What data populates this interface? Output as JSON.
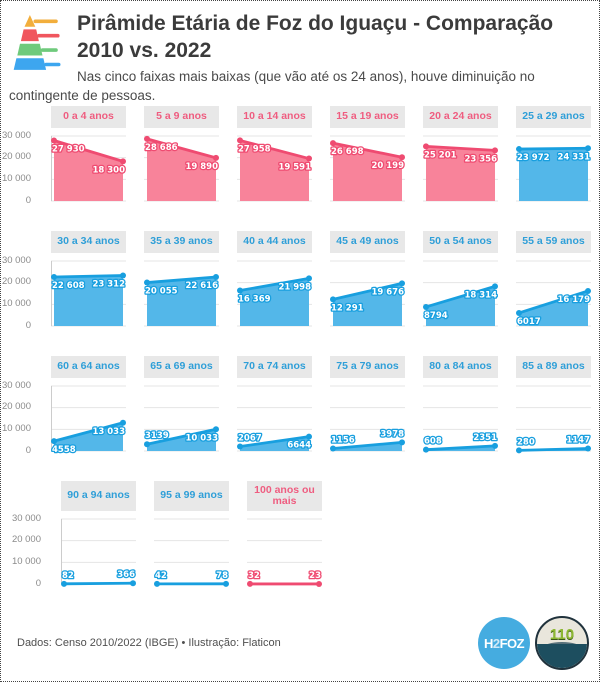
{
  "header": {
    "title": "Pirâmide Etária de Foz do Iguaçu - Comparação 2010 vs. 2022",
    "subtitle": "Nas cinco faixas mais baixas (que vão até os 24 anos), houve diminuição no contingente de pessoas.",
    "icon": "population-pyramid-icon"
  },
  "footer": {
    "credit": "Dados: Censo 2010/2022 (IBGE) • Ilustração: Flaticon",
    "h2foz_parts": [
      "H",
      "2",
      "FOZ"
    ],
    "badge_number": "110"
  },
  "colors": {
    "decrease_line": "#ef4b71",
    "decrease_fill": "#f8839a",
    "decrease_text": "#ef5d80",
    "increase_line": "#189fdf",
    "increase_fill": "#53b7e9",
    "increase_text": "#2f9fd8",
    "band_bg": "#e8e8e8",
    "grid": "#e4e4e4",
    "axis_line": "#cccccc",
    "axis_text": "#8b8b8b",
    "label_text": "#ffffff"
  },
  "chart_data": {
    "type": "area",
    "x": [
      2010,
      2022
    ],
    "ylim": [
      0,
      30000
    ],
    "yticks": [
      0,
      10000,
      20000,
      30000
    ],
    "ytick_labels_top_to_bottom": [
      "30 000",
      "20 000",
      "10 000",
      "0"
    ],
    "rows": [
      6,
      6,
      6,
      3
    ],
    "grid": true,
    "legend": "none",
    "groups": [
      {
        "label": "0 a 4 anos",
        "v2010": 27930,
        "v2022": 18300,
        "l2010": "27 930",
        "l2022": "18 300",
        "trend": "down"
      },
      {
        "label": "5 a 9 anos",
        "v2010": 28686,
        "v2022": 19890,
        "l2010": "28 686",
        "l2022": "19 890",
        "trend": "down"
      },
      {
        "label": "10 a 14 anos",
        "v2010": 27958,
        "v2022": 19591,
        "l2010": "27 958",
        "l2022": "19 591",
        "trend": "down"
      },
      {
        "label": "15 a 19 anos",
        "v2010": 26698,
        "v2022": 20199,
        "l2010": "26 698",
        "l2022": "20 199",
        "trend": "down"
      },
      {
        "label": "20 a 24 anos",
        "v2010": 25201,
        "v2022": 23356,
        "l2010": "25 201",
        "l2022": "23 356",
        "trend": "down"
      },
      {
        "label": "25 a 29 anos",
        "v2010": 23972,
        "v2022": 24331,
        "l2010": "23 972",
        "l2022": "24 331",
        "trend": "up"
      },
      {
        "label": "30 a 34 anos",
        "v2010": 22608,
        "v2022": 23312,
        "l2010": "22 608",
        "l2022": "23 312",
        "trend": "up"
      },
      {
        "label": "35 a 39 anos",
        "v2010": 20055,
        "v2022": 22616,
        "l2010": "20 055",
        "l2022": "22 616",
        "trend": "up"
      },
      {
        "label": "40 a 44 anos",
        "v2010": 16369,
        "v2022": 21998,
        "l2010": "16 369",
        "l2022": "21 998",
        "trend": "up"
      },
      {
        "label": "45 a 49 anos",
        "v2010": 12291,
        "v2022": 19676,
        "l2010": "12 291",
        "l2022": "19 676",
        "trend": "up"
      },
      {
        "label": "50 a 54 anos",
        "v2010": 8794,
        "v2022": 18314,
        "l2010": "8794",
        "l2022": "18 314",
        "trend": "up"
      },
      {
        "label": "55 a 59 anos",
        "v2010": 6017,
        "v2022": 16179,
        "l2010": "6017",
        "l2022": "16 179",
        "trend": "up"
      },
      {
        "label": "60 a 64 anos",
        "v2010": 4558,
        "v2022": 13033,
        "l2010": "4558",
        "l2022": "13 033",
        "trend": "up"
      },
      {
        "label": "65 a 69 anos",
        "v2010": 3139,
        "v2022": 10033,
        "l2010": "3139",
        "l2022": "10 033",
        "trend": "up"
      },
      {
        "label": "70 a 74 anos",
        "v2010": 2067,
        "v2022": 6644,
        "l2010": "2067",
        "l2022": "6644",
        "trend": "up"
      },
      {
        "label": "75 a 79 anos",
        "v2010": 1156,
        "v2022": 3978,
        "l2010": "1156",
        "l2022": "3978",
        "trend": "up"
      },
      {
        "label": "80 a 84 anos",
        "v2010": 608,
        "v2022": 2351,
        "l2010": "608",
        "l2022": "2351",
        "trend": "up"
      },
      {
        "label": "85 a 89 anos",
        "v2010": 280,
        "v2022": 1147,
        "l2010": "280",
        "l2022": "1147",
        "trend": "up"
      },
      {
        "label": "90 a 94 anos",
        "v2010": 82,
        "v2022": 366,
        "l2010": "82",
        "l2022": "366",
        "trend": "up"
      },
      {
        "label": "95 a 99 anos",
        "v2010": 42,
        "v2022": 78,
        "l2010": "42",
        "l2022": "78",
        "trend": "up"
      },
      {
        "label": "100 anos ou mais",
        "v2010": 32,
        "v2022": 23,
        "l2010": "32",
        "l2022": "23",
        "trend": "down"
      }
    ]
  }
}
